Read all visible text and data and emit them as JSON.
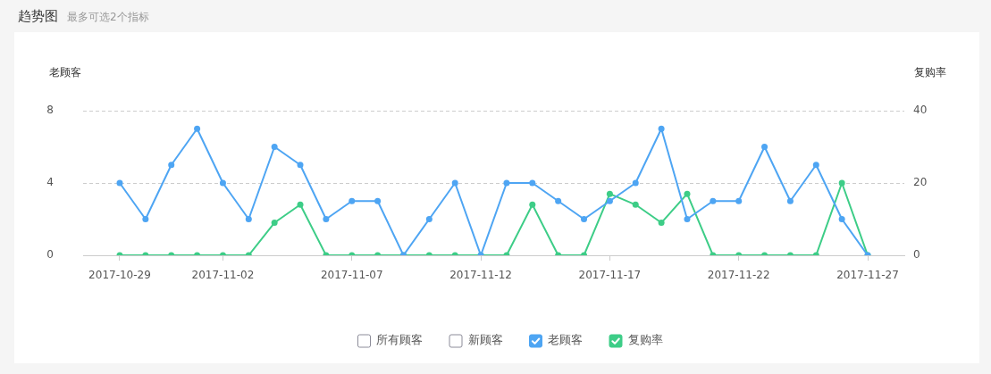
{
  "chart_data": {
    "type": "line",
    "title": "趋势图",
    "subtitle": "最多可选2个指标",
    "ylabel": "老顾客",
    "y2label": "复购率",
    "categories": [
      "2017-10-29",
      null,
      null,
      null,
      "2017-11-02",
      null,
      null,
      null,
      null,
      "2017-11-07",
      null,
      null,
      null,
      null,
      "2017-11-12",
      null,
      null,
      null,
      null,
      "2017-11-17",
      null,
      null,
      null,
      null,
      "2017-11-22",
      null,
      null,
      null,
      null,
      "2017-11-27"
    ],
    "series": [
      {
        "name": "所有顾客",
        "values": [
          null,
          null,
          null,
          null,
          null,
          null,
          null,
          null,
          null,
          null,
          null,
          null,
          null,
          null,
          null,
          null,
          null,
          null,
          null,
          null,
          null,
          null,
          null,
          null,
          null,
          null,
          null,
          null,
          null,
          null
        ]
      },
      {
        "name": "新顾客",
        "values": [
          null,
          null,
          null,
          null,
          null,
          null,
          null,
          null,
          null,
          null,
          null,
          null,
          null,
          null,
          null,
          null,
          null,
          null,
          null,
          null,
          null,
          null,
          null,
          null,
          null,
          null,
          null,
          null,
          null,
          null
        ]
      },
      {
        "name": "老顾客",
        "color": "#4ea5f3",
        "values": [
          4,
          2,
          5,
          7,
          4,
          2,
          6,
          5,
          2,
          3,
          3,
          0,
          2,
          4,
          0,
          4,
          4,
          3,
          2,
          3,
          4,
          7,
          2,
          3,
          3,
          6,
          3,
          5,
          2,
          0
        ]
      },
      {
        "name": "复购率",
        "color": "#3dcd87",
        "axis": "y2",
        "values": [
          0,
          0,
          0,
          0,
          0,
          0,
          9,
          14,
          0,
          0,
          0,
          0,
          0,
          0,
          0,
          0,
          14,
          0,
          0,
          17,
          14,
          9,
          17,
          0,
          0,
          0,
          0,
          0,
          20,
          0
        ]
      }
    ],
    "ylim": [
      0,
      8
    ],
    "yticks": [
      0,
      4,
      8
    ],
    "y2lim": [
      0,
      40
    ],
    "y2ticks": [
      0,
      20,
      40
    ],
    "grid": "y",
    "legend": "bottom",
    "marker": "circle"
  }
}
